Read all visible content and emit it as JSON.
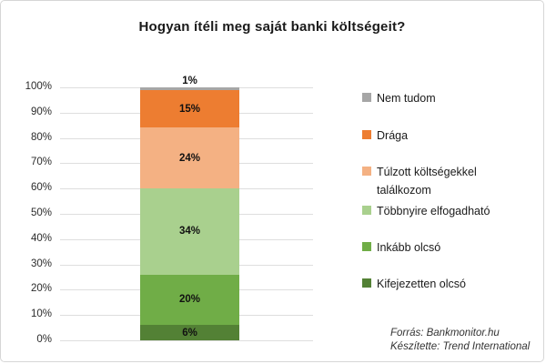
{
  "chart_data": {
    "type": "bar",
    "subtype": "stacked-single-column-percent",
    "title": "Hogyan ítéli meg saját banki költségeit?",
    "categories": [
      ""
    ],
    "series": [
      {
        "name": "Kifejezetten olcsó",
        "value": 6,
        "label": "6%",
        "color": "#538135"
      },
      {
        "name": "Inkább olcsó",
        "value": 20,
        "label": "20%",
        "color": "#70AD47"
      },
      {
        "name": "Többnyire elfogadható",
        "value": 34,
        "label": "34%",
        "color": "#A9D08E"
      },
      {
        "name": "Túlzott költségekkel találkozom",
        "value": 24,
        "label": "24%",
        "color": "#F4B183"
      },
      {
        "name": "Drága",
        "value": 15,
        "label": "15%",
        "color": "#ED7D31"
      },
      {
        "name": "Nem tudom",
        "value": 1,
        "label": "1%",
        "color": "#A6A6A6"
      }
    ],
    "ylabel": "",
    "xlabel": "",
    "ylim": [
      0,
      100
    ],
    "yticks": [
      "0%",
      "10%",
      "20%",
      "30%",
      "40%",
      "50%",
      "60%",
      "70%",
      "80%",
      "90%",
      "100%"
    ],
    "grid": true,
    "gridline_color": "#DEDEDE",
    "legend_position": "right",
    "legend_order_note": "top segment listed first (reverse of stack order)"
  },
  "footer": {
    "lines": [
      "Forrás: Bankmonitor.hu",
      "Készítette: Trend International"
    ]
  }
}
